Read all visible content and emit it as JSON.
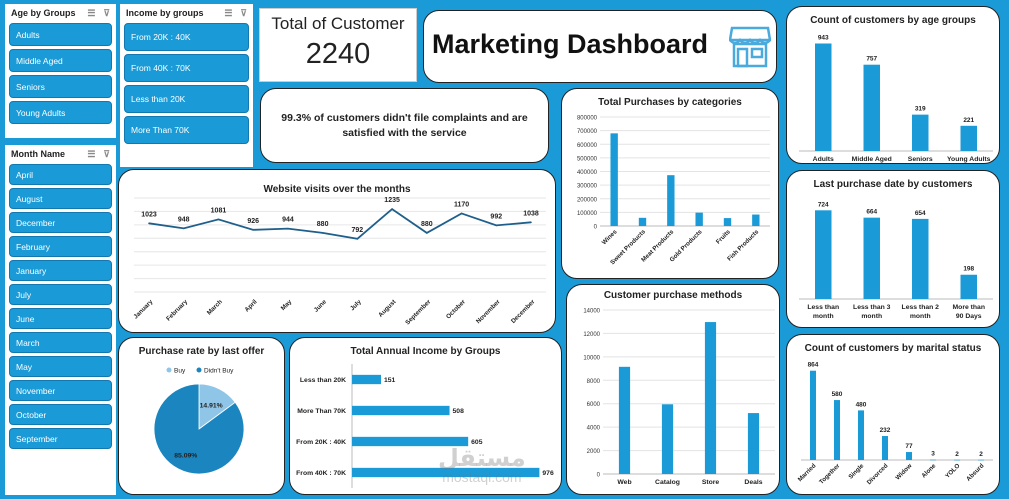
{
  "slicers": {
    "age": {
      "title": "Age by Groups",
      "items": [
        "Adults",
        "Middle Aged",
        "Seniors",
        "Young Adults"
      ]
    },
    "income": {
      "title": "Income by groups",
      "items": [
        "From 20K : 40K",
        "From 40K : 70K",
        "Less than 20K",
        "More Than 70K"
      ]
    },
    "month": {
      "title": "Month Name",
      "items": [
        "April",
        "August",
        "December",
        "February",
        "January",
        "July",
        "June",
        "March",
        "May",
        "November",
        "October",
        "September"
      ]
    }
  },
  "kpi": {
    "label": "Total of Customer",
    "value": "2240"
  },
  "header": {
    "title": "Marketing Dashboard",
    "icon": "store-icon"
  },
  "complaint_text": "99.3% of customers didn't file complaints and are satisfied with the service",
  "watermark": {
    "arabic": "مستقل",
    "latin": "mostaql.com"
  },
  "colors": {
    "accent": "#1a9ad6",
    "bar": "#1a9ad6",
    "pie_light": "#8fc6e8",
    "pie_dark": "#1a85be",
    "line": "#1f5f8b"
  },
  "chart_data": [
    {
      "id": "age",
      "type": "bar",
      "title": "Count of customers by age groups",
      "categories": [
        "Adults",
        "Middle Aged",
        "Seniors",
        "Young Adults"
      ],
      "values": [
        943,
        757,
        319,
        221
      ],
      "ylim": [
        0,
        1000
      ]
    },
    {
      "id": "purchases",
      "type": "bar",
      "title": "Total Purchases by categories",
      "categories": [
        "Wines",
        "Sweet Products",
        "Meat Products",
        "Gold Products",
        "Fruits",
        "Fish Products"
      ],
      "values": [
        680000,
        60000,
        373000,
        98000,
        58000,
        84000
      ],
      "ylim": [
        0,
        800000
      ],
      "ticks": [
        "0",
        "100000",
        "200000",
        "300000",
        "400000",
        "500000",
        "600000",
        "700000",
        "800000"
      ]
    },
    {
      "id": "last_purchase",
      "type": "bar",
      "title": "Last purchase date by customers",
      "categories": [
        "Less than month",
        "Less than 3 month",
        "Less than 2 month",
        "More than 90 Days"
      ],
      "values": [
        724,
        664,
        654,
        198
      ],
      "ylim": [
        0,
        800
      ]
    },
    {
      "id": "visits",
      "type": "line",
      "title": "Website visits over the months",
      "categories": [
        "January",
        "February",
        "March",
        "April",
        "May",
        "June",
        "July",
        "August",
        "September",
        "October",
        "November",
        "December"
      ],
      "values": [
        1023,
        948,
        1081,
        926,
        944,
        880,
        792,
        1235,
        880,
        1170,
        992,
        1038
      ],
      "ylim": [
        0,
        1400
      ]
    },
    {
      "id": "methods",
      "type": "bar",
      "title": "Customer purchase methods",
      "categories": [
        "Web",
        "Catalog",
        "Store",
        "Deals"
      ],
      "values": [
        9150,
        5950,
        12970,
        5200
      ],
      "ylim": [
        0,
        14000
      ],
      "ticks": [
        "0",
        "2000",
        "4000",
        "6000",
        "8000",
        "10000",
        "12000",
        "14000"
      ]
    },
    {
      "id": "offer",
      "type": "pie",
      "title": "Purchase rate by last offer",
      "legend": [
        "Buy",
        "Didn't Buy"
      ],
      "values": [
        14.91,
        85.09
      ],
      "labels": [
        "14.91%",
        "85.09%"
      ]
    },
    {
      "id": "income",
      "type": "bar",
      "orientation": "horizontal",
      "title": "Total Annual Income by Groups",
      "categories": [
        "Less than 20K",
        "More Than 70K",
        "From 20K : 40K",
        "From 40K : 70K"
      ],
      "values": [
        151,
        508,
        605,
        976
      ],
      "xlim": [
        0,
        1000
      ]
    },
    {
      "id": "marital",
      "type": "bar",
      "title": "Count of customers by marital status",
      "categories": [
        "Married",
        "Together",
        "Single",
        "Divorced",
        "Widow",
        "Alone",
        "YOLO",
        "Absurd"
      ],
      "values": [
        864,
        580,
        480,
        232,
        77,
        3,
        2,
        2
      ],
      "ylim": [
        0,
        900
      ]
    }
  ]
}
